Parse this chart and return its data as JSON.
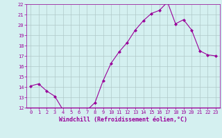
{
  "hours": [
    0,
    1,
    2,
    3,
    4,
    5,
    6,
    7,
    8,
    9,
    10,
    11,
    12,
    13,
    14,
    15,
    16,
    17,
    18,
    19,
    20,
    21,
    22,
    23
  ],
  "values": [
    14.1,
    14.3,
    13.6,
    13.1,
    11.8,
    11.85,
    11.8,
    11.75,
    12.5,
    14.6,
    16.3,
    17.4,
    18.3,
    19.5,
    20.4,
    21.1,
    21.4,
    22.2,
    20.1,
    20.5,
    19.5,
    17.5,
    17.1,
    17.0
  ],
  "ylim": [
    12,
    22
  ],
  "yticks": [
    12,
    13,
    14,
    15,
    16,
    17,
    18,
    19,
    20,
    21,
    22
  ],
  "xticks": [
    0,
    1,
    2,
    3,
    4,
    5,
    6,
    7,
    8,
    9,
    10,
    11,
    12,
    13,
    14,
    15,
    16,
    17,
    18,
    19,
    20,
    21,
    22,
    23
  ],
  "xlabel": "Windchill (Refroidissement éolien,°C)",
  "line_color": "#990099",
  "marker": "D",
  "marker_size": 2.0,
  "background_color": "#d4f0f0",
  "grid_color": "#b0c8c8",
  "xlabel_color": "#990099",
  "tick_color": "#990099",
  "tick_fontsize": 5.0,
  "xlabel_fontsize": 6.0
}
